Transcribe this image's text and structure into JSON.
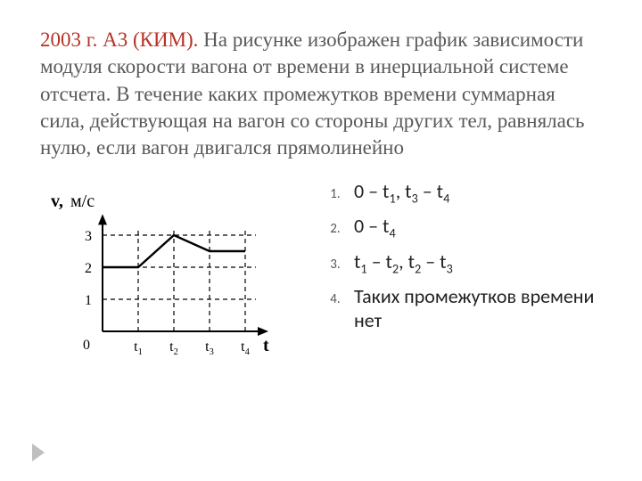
{
  "question": {
    "lead": "2003 г. А3 (КИМ).",
    "body": " На рисунке изображен график зависимости модуля скорости вагона от времени в инерциальной системе отсчета. В течение каких промежутков времени суммарная сила, действующая на вагон со стороны других тел, равнялась нулю, если вагон двигался прямолинейно"
  },
  "answers": [
    "0 – t₁,  t₃ – t₄",
    "0 – t₄",
    "t₁ – t₂, t₂ – t₃",
    "Таких промежутков времени нет"
  ],
  "chart": {
    "type": "line",
    "y_axis_label": "v, м/с",
    "x_axis_label": "t",
    "origin_label": "0",
    "y_ticks": [
      1,
      2,
      3
    ],
    "x_ticks": [
      "t₁",
      "t₂",
      "t₃",
      "t₄"
    ],
    "x_positions": [
      1,
      2,
      3,
      4
    ],
    "series": {
      "points": [
        [
          0,
          2
        ],
        [
          1,
          2
        ],
        [
          2,
          3
        ],
        [
          3,
          2.5
        ],
        [
          4,
          2.5
        ]
      ],
      "color": "#000000",
      "line_width": 2.4
    },
    "axis_color": "#000000",
    "axis_width": 2,
    "grid_color": "#000000",
    "grid_dash": "5,4",
    "background": "#ffffff",
    "font_size": 16,
    "font_size_axis_label": 20,
    "xlim": [
      0,
      4.6
    ],
    "ylim": [
      0,
      3.6
    ]
  }
}
